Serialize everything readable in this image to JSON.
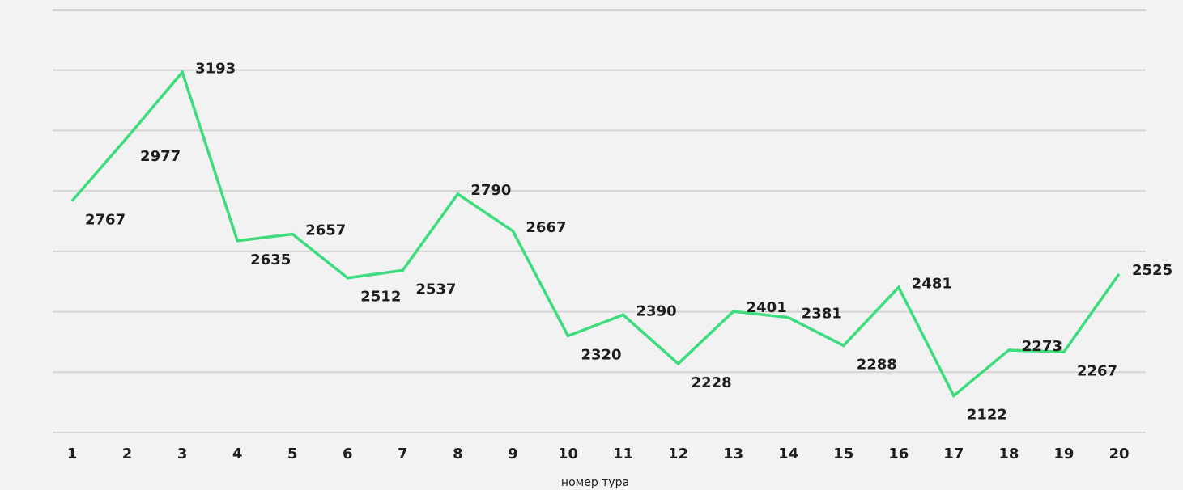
{
  "chart_data": {
    "type": "line",
    "x_label": "номер тура",
    "categories": [
      "1",
      "2",
      "3",
      "4",
      "5",
      "6",
      "7",
      "8",
      "9",
      "10",
      "11",
      "12",
      "13",
      "14",
      "15",
      "16",
      "17",
      "18",
      "19",
      "20"
    ],
    "series": [
      {
        "name": null,
        "color": "#3ddc7c",
        "values": [
          2767,
          2977,
          3193,
          2635,
          2657,
          2512,
          2537,
          2790,
          2667,
          2320,
          2390,
          2228,
          2401,
          2381,
          2288,
          2481,
          2122,
          2273,
          2267,
          2525
        ]
      }
    ],
    "ylim": [
      2000,
      3400
    ],
    "yticks": [
      2000,
      2200,
      2400,
      2600,
      2800,
      3000,
      3200,
      3400
    ],
    "grid": true,
    "data_labels": true
  }
}
